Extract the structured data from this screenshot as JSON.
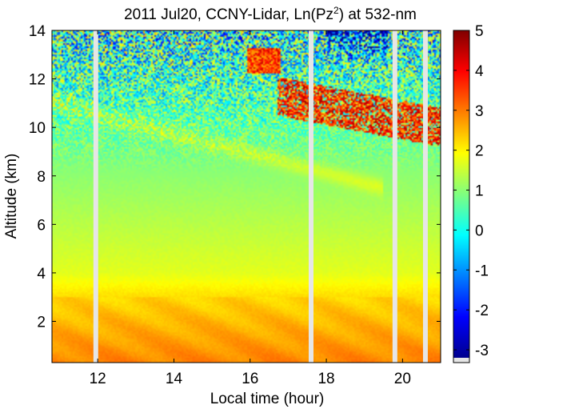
{
  "chart_data": {
    "type": "heatmap",
    "title": "2011 Jul20, CCNY-Lidar, Ln(Pz",
    "title_sup": "2",
    "title_tail": ") at 532-nm",
    "xlabel": "Local time (hour)",
    "ylabel": "Altitude (km)",
    "xlim": [
      10.8,
      21.0
    ],
    "ylim": [
      0.3,
      14
    ],
    "xticks": [
      12,
      14,
      16,
      18,
      20
    ],
    "yticks": [
      2,
      4,
      6,
      8,
      10,
      12,
      14
    ],
    "colorbar": {
      "range": [
        -3.2,
        5
      ],
      "ticks": [
        5,
        4,
        3,
        2,
        1,
        0,
        -1,
        -2,
        -3
      ],
      "colormap": "jet"
    },
    "data_gaps_hours": [
      11.95,
      17.6,
      19.8,
      20.6
    ],
    "features": [
      {
        "type": "boundary_layer",
        "x_range": [
          10.8,
          21.0
        ],
        "altitude_km": [
          0.3,
          3.0
        ],
        "value": 3.0
      },
      {
        "type": "aerosol_layer",
        "x_range": [
          10.8,
          19.5
        ],
        "altitude_km": [
          8.0,
          11.3
        ],
        "value": 1.6
      },
      {
        "type": "cirrus_cloud",
        "x_range": [
          15.9,
          16.8
        ],
        "altitude_km": [
          12.2,
          13.3
        ],
        "value": 3.5
      },
      {
        "type": "cirrus_cloud",
        "x_range": [
          16.7,
          21.0
        ],
        "altitude_km": [
          9.8,
          12.5
        ],
        "value": 3.8
      }
    ]
  },
  "colors": {
    "gap": "#e6e6e6",
    "colorbar_nan": "#e6e6e6"
  }
}
